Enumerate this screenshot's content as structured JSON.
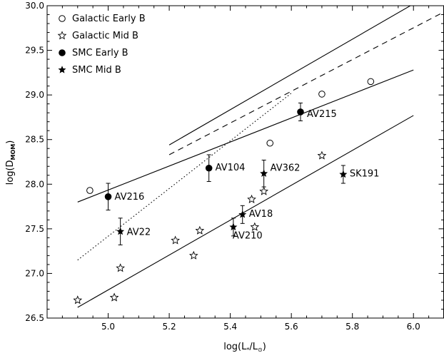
{
  "chart_data": {
    "type": "scatter",
    "xlabel": "log(L∗/L⊙)",
    "ylabel": "log(Dₘₒₘ)",
    "ylabel_main": "log(D",
    "ylabel_sub": "MOM",
    "ylabel_close": ")",
    "xlabel_main": "log(L",
    "xlabel_sub1": "*",
    "xlabel_mid": "/L",
    "xlabel_sub2": "⊙",
    "xlabel_close": ")",
    "xlim": [
      4.8,
      6.1
    ],
    "ylim": [
      26.5,
      30.0
    ],
    "x_ticks": [
      5.0,
      5.2,
      5.4,
      5.6,
      5.8,
      6.0
    ],
    "x_tick_labels": [
      "5.0",
      "5.2",
      "5.4",
      "5.6",
      "5.8",
      "6.0"
    ],
    "y_ticks": [
      26.5,
      27.0,
      27.5,
      28.0,
      28.5,
      29.0,
      29.5,
      30.0
    ],
    "y_tick_labels": [
      "26.5",
      "27.0",
      "27.5",
      "28.0",
      "28.5",
      "29.0",
      "29.5",
      "30.0"
    ],
    "grid": false,
    "legend_position": "top-left",
    "series": [
      {
        "name": "Galactic Early B",
        "marker": "open-circle",
        "points": [
          {
            "x": 4.94,
            "y": 27.93
          },
          {
            "x": 5.53,
            "y": 28.46
          },
          {
            "x": 5.7,
            "y": 29.01
          },
          {
            "x": 5.86,
            "y": 29.15
          }
        ]
      },
      {
        "name": "Galactic Mid B",
        "marker": "open-star",
        "points": [
          {
            "x": 4.9,
            "y": 26.7
          },
          {
            "x": 5.02,
            "y": 26.73
          },
          {
            "x": 5.04,
            "y": 27.06
          },
          {
            "x": 5.22,
            "y": 27.37
          },
          {
            "x": 5.28,
            "y": 27.2
          },
          {
            "x": 5.3,
            "y": 27.48
          },
          {
            "x": 5.47,
            "y": 27.83
          },
          {
            "x": 5.48,
            "y": 27.52
          },
          {
            "x": 5.51,
            "y": 27.92
          },
          {
            "x": 5.7,
            "y": 28.32
          }
        ]
      },
      {
        "name": "SMC Early B",
        "marker": "filled-circle",
        "points": [
          {
            "x": 5.0,
            "y": 27.86,
            "err": 0.15,
            "label": "AV216"
          },
          {
            "x": 5.33,
            "y": 28.18,
            "err": 0.15,
            "label": "AV104"
          },
          {
            "x": 5.63,
            "y": 28.81,
            "err": 0.1,
            "label": "AV215"
          }
        ]
      },
      {
        "name": "SMC Mid B",
        "marker": "filled-star",
        "points": [
          {
            "x": 5.04,
            "y": 27.47,
            "err": 0.15,
            "label": "AV22"
          },
          {
            "x": 5.41,
            "y": 27.52,
            "err": 0.1,
            "label": "AV210"
          },
          {
            "x": 5.44,
            "y": 27.66,
            "err": 0.1,
            "label": "AV18"
          },
          {
            "x": 5.51,
            "y": 28.12,
            "err": 0.15,
            "label": "AV362"
          },
          {
            "x": 5.77,
            "y": 28.11,
            "err": 0.1,
            "label": "SK191"
          }
        ]
      }
    ],
    "lines": [
      {
        "style": "solid",
        "x": [
          4.9,
          6.0
        ],
        "y": [
          27.8,
          29.28
        ]
      },
      {
        "style": "solid",
        "x": [
          4.9,
          6.0
        ],
        "y": [
          26.62,
          28.77
        ]
      },
      {
        "style": "solid",
        "x": [
          5.2,
          6.0
        ],
        "y": [
          28.44,
          30.02
        ]
      },
      {
        "style": "dashed",
        "x": [
          5.2,
          6.1
        ],
        "y": [
          28.33,
          29.93
        ]
      },
      {
        "style": "dotted",
        "x": [
          4.9,
          5.6
        ],
        "y": [
          27.15,
          29.02
        ]
      }
    ]
  }
}
